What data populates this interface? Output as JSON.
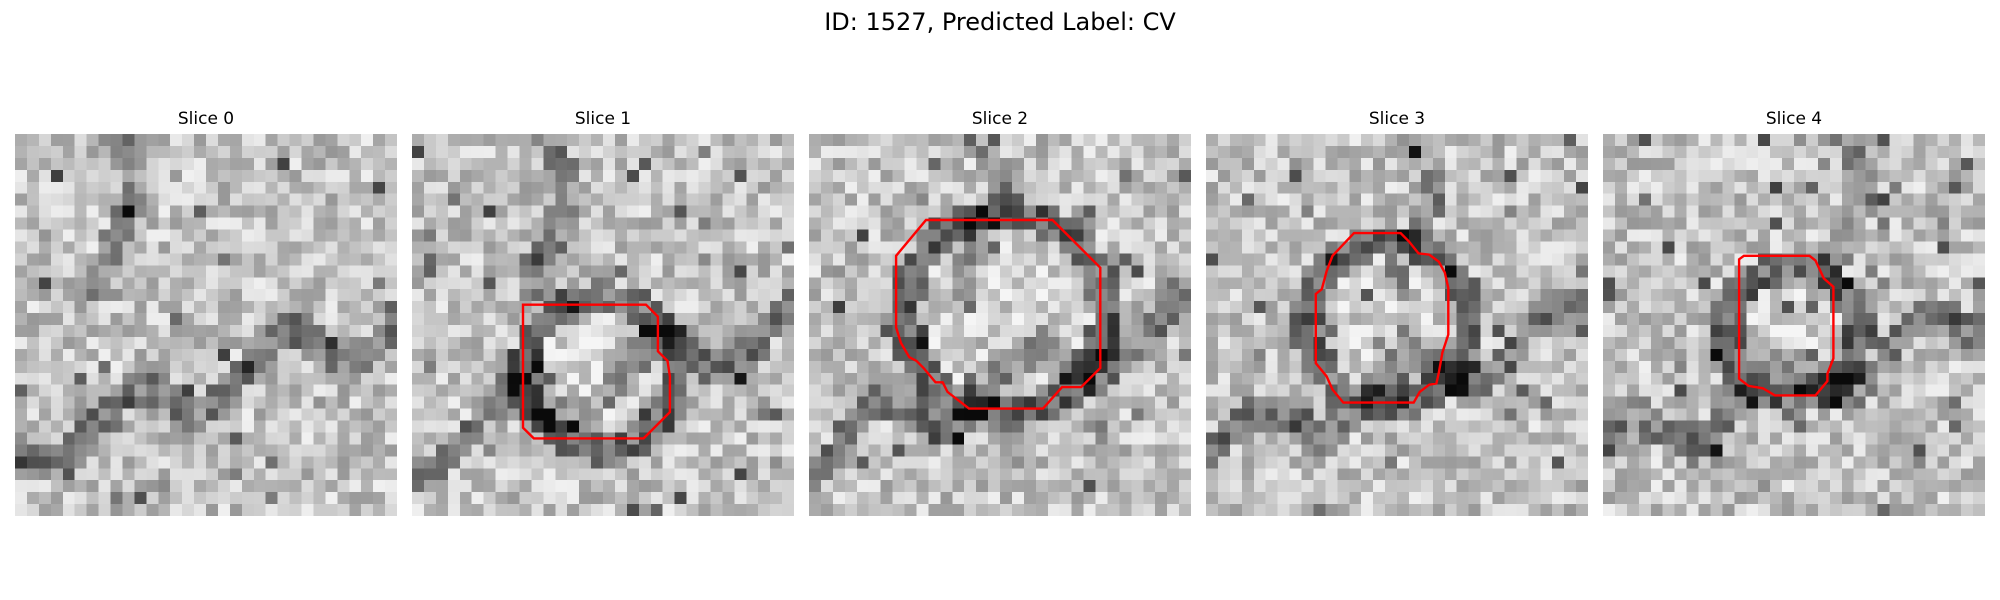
{
  "figure": {
    "title": "ID: 1527, Predicted Label: CV"
  },
  "panels": [
    {
      "title": "Slice 0",
      "seed": 11,
      "has_outline": false
    },
    {
      "title": "Slice 1",
      "seed": 23,
      "has_outline": true
    },
    {
      "title": "Slice 2",
      "seed": 37,
      "has_outline": true
    },
    {
      "title": "Slice 3",
      "seed": 51,
      "has_outline": true
    },
    {
      "title": "Slice 4",
      "seed": 67,
      "has_outline": true
    }
  ],
  "style": {
    "colormap": "grayscale",
    "outline_color": "#ff0000",
    "grid": false
  }
}
